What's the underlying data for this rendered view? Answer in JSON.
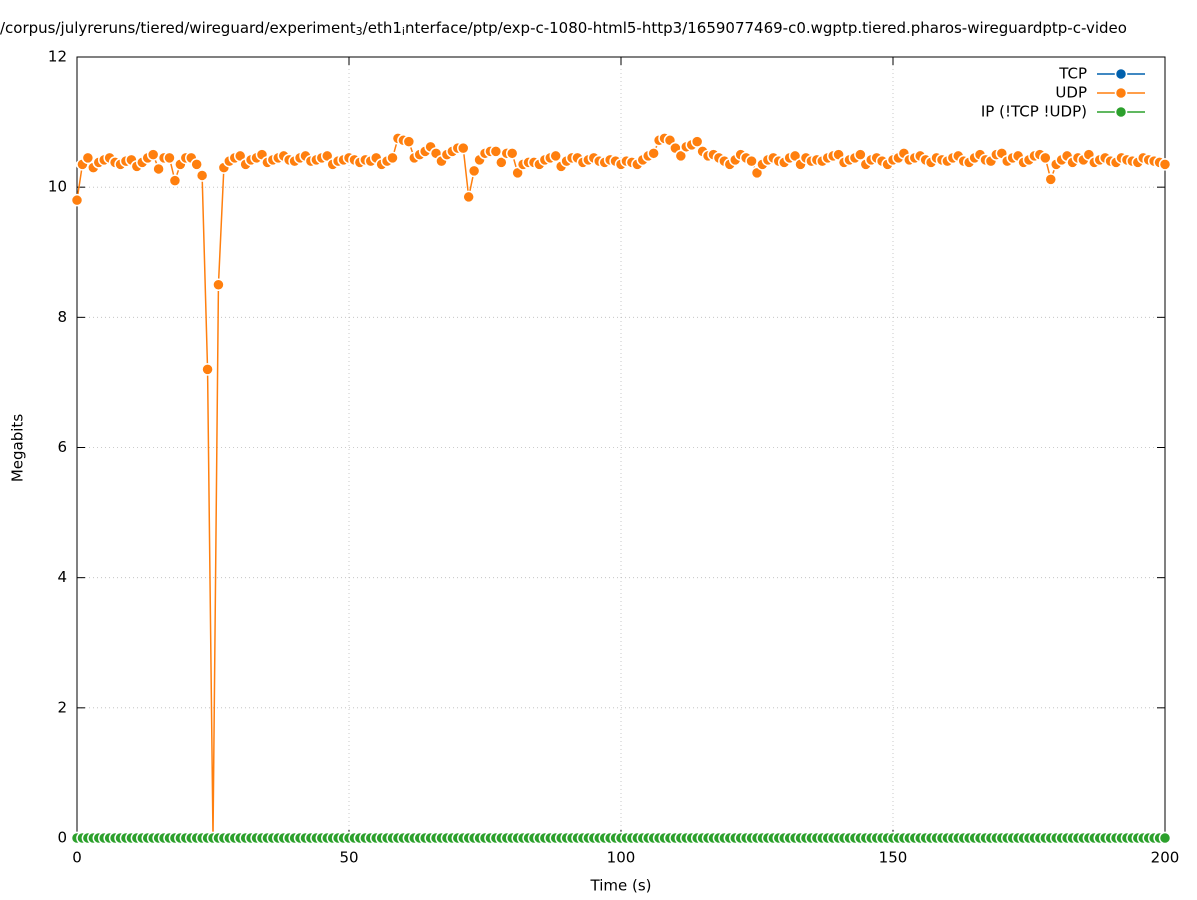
{
  "chart_data": {
    "type": "line",
    "title_parts": [
      "/corpus/julyreruns/tiered/wireguard/experiment",
      "3",
      "/eth1",
      "i",
      "nterface/ptp/exp-c-1080-html5-http3/1659077469-c0.wgptp.tiered.pharos-wireguardptp-c-video"
    ],
    "xlabel": "Time (s)",
    "ylabel": "Megabits",
    "xlim": [
      0,
      200
    ],
    "xticks": [
      0,
      50,
      100,
      150,
      200
    ],
    "ylim": [
      0,
      12
    ],
    "yticks": [
      0,
      2,
      4,
      6,
      8,
      10,
      12
    ],
    "grid": true,
    "legend": "top-right",
    "x": [
      0,
      1,
      2,
      3,
      4,
      5,
      6,
      7,
      8,
      9,
      10,
      11,
      12,
      13,
      14,
      15,
      16,
      17,
      18,
      19,
      20,
      21,
      22,
      23,
      24,
      25,
      26,
      27,
      28,
      29,
      30,
      31,
      32,
      33,
      34,
      35,
      36,
      37,
      38,
      39,
      40,
      41,
      42,
      43,
      44,
      45,
      46,
      47,
      48,
      49,
      50,
      51,
      52,
      53,
      54,
      55,
      56,
      57,
      58,
      59,
      60,
      61,
      62,
      63,
      64,
      65,
      66,
      67,
      68,
      69,
      70,
      71,
      72,
      73,
      74,
      75,
      76,
      77,
      78,
      79,
      80,
      81,
      82,
      83,
      84,
      85,
      86,
      87,
      88,
      89,
      90,
      91,
      92,
      93,
      94,
      95,
      96,
      97,
      98,
      99,
      100,
      101,
      102,
      103,
      104,
      105,
      106,
      107,
      108,
      109,
      110,
      111,
      112,
      113,
      114,
      115,
      116,
      117,
      118,
      119,
      120,
      121,
      122,
      123,
      124,
      125,
      126,
      127,
      128,
      129,
      130,
      131,
      132,
      133,
      134,
      135,
      136,
      137,
      138,
      139,
      140,
      141,
      142,
      143,
      144,
      145,
      146,
      147,
      148,
      149,
      150,
      151,
      152,
      153,
      154,
      155,
      156,
      157,
      158,
      159,
      160,
      161,
      162,
      163,
      164,
      165,
      166,
      167,
      168,
      169,
      170,
      171,
      172,
      173,
      174,
      175,
      176,
      177,
      178,
      179,
      180,
      181,
      182,
      183,
      184,
      185,
      186,
      187,
      188,
      189,
      190,
      191,
      192,
      193,
      194,
      195,
      196,
      197,
      198,
      199,
      200
    ],
    "series": [
      {
        "name": "TCP",
        "color": "#0060ad",
        "values": [
          0,
          0,
          0,
          0,
          0,
          0,
          0,
          0,
          0,
          0,
          0,
          0,
          0,
          0,
          0,
          0,
          0,
          0,
          0,
          0,
          0,
          0,
          0,
          0,
          0,
          0,
          0,
          0,
          0,
          0,
          0,
          0,
          0,
          0,
          0,
          0,
          0,
          0,
          0,
          0,
          0,
          0,
          0,
          0,
          0,
          0,
          0,
          0,
          0,
          0,
          0,
          0,
          0,
          0,
          0,
          0,
          0,
          0,
          0,
          0,
          0,
          0,
          0,
          0,
          0,
          0,
          0,
          0,
          0,
          0,
          0,
          0,
          0,
          0,
          0,
          0,
          0,
          0,
          0,
          0,
          0,
          0,
          0,
          0,
          0,
          0,
          0,
          0,
          0,
          0,
          0,
          0,
          0,
          0,
          0,
          0,
          0,
          0,
          0,
          0,
          0,
          0,
          0,
          0,
          0,
          0,
          0,
          0,
          0,
          0,
          0,
          0,
          0,
          0,
          0,
          0,
          0,
          0,
          0,
          0,
          0,
          0,
          0,
          0,
          0,
          0,
          0,
          0,
          0,
          0,
          0,
          0,
          0,
          0,
          0,
          0,
          0,
          0,
          0,
          0,
          0,
          0,
          0,
          0,
          0,
          0,
          0,
          0,
          0,
          0,
          0,
          0,
          0,
          0,
          0,
          0,
          0,
          0,
          0,
          0,
          0,
          0,
          0,
          0,
          0,
          0,
          0,
          0,
          0,
          0,
          0,
          0,
          0,
          0,
          0,
          0,
          0,
          0,
          0,
          0,
          0,
          0,
          0,
          0,
          0,
          0,
          0,
          0,
          0,
          0,
          0,
          0,
          0,
          0,
          0,
          0,
          0,
          0,
          0,
          0,
          0
        ]
      },
      {
        "name": "UDP",
        "color": "#ff7f0e",
        "values": [
          9.8,
          10.35,
          10.45,
          10.3,
          10.38,
          10.42,
          10.45,
          10.38,
          10.35,
          10.4,
          10.42,
          10.32,
          10.38,
          10.45,
          10.5,
          10.28,
          10.45,
          10.45,
          10.1,
          10.35,
          10.45,
          10.45,
          10.35,
          10.18,
          7.2,
          0,
          8.5,
          10.3,
          10.4,
          10.45,
          10.48,
          10.35,
          10.42,
          10.45,
          10.5,
          10.38,
          10.42,
          10.45,
          10.48,
          10.42,
          10.4,
          10.45,
          10.48,
          10.4,
          10.42,
          10.45,
          10.48,
          10.35,
          10.4,
          10.42,
          10.45,
          10.42,
          10.38,
          10.42,
          10.4,
          10.45,
          10.35,
          10.4,
          10.45,
          10.75,
          10.72,
          10.7,
          10.45,
          10.5,
          10.55,
          10.62,
          10.52,
          10.4,
          10.5,
          10.55,
          10.6,
          10.6,
          9.85,
          10.25,
          10.42,
          10.52,
          10.55,
          10.55,
          10.38,
          10.52,
          10.52,
          10.22,
          10.35,
          10.38,
          10.38,
          10.35,
          10.42,
          10.45,
          10.48,
          10.32,
          10.4,
          10.45,
          10.45,
          10.38,
          10.42,
          10.45,
          10.4,
          10.38,
          10.42,
          10.4,
          10.35,
          10.4,
          10.38,
          10.35,
          10.42,
          10.48,
          10.52,
          10.72,
          10.75,
          10.72,
          10.6,
          10.48,
          10.62,
          10.65,
          10.7,
          10.55,
          10.48,
          10.5,
          10.45,
          10.4,
          10.35,
          10.42,
          10.5,
          10.45,
          10.4,
          10.22,
          10.35,
          10.42,
          10.45,
          10.4,
          10.38,
          10.45,
          10.48,
          10.35,
          10.45,
          10.4,
          10.42,
          10.4,
          10.45,
          10.48,
          10.5,
          10.38,
          10.42,
          10.45,
          10.5,
          10.35,
          10.42,
          10.45,
          10.4,
          10.35,
          10.42,
          10.45,
          10.52,
          10.42,
          10.45,
          10.48,
          10.42,
          10.38,
          10.45,
          10.42,
          10.4,
          10.45,
          10.48,
          10.4,
          10.38,
          10.45,
          10.5,
          10.42,
          10.4,
          10.5,
          10.52,
          10.4,
          10.45,
          10.48,
          10.38,
          10.42,
          10.48,
          10.5,
          10.45,
          10.12,
          10.35,
          10.42,
          10.48,
          10.38,
          10.45,
          10.42,
          10.5,
          10.38,
          10.42,
          10.45,
          10.4,
          10.38,
          10.45,
          10.42,
          10.4,
          10.38,
          10.45,
          10.42,
          10.4,
          10.38,
          10.35
        ]
      },
      {
        "name": "IP (!TCP  !UDP)",
        "color": "#2ca02c",
        "values": [
          0,
          0,
          0,
          0,
          0,
          0,
          0,
          0,
          0,
          0,
          0,
          0,
          0,
          0,
          0,
          0,
          0,
          0,
          0,
          0,
          0,
          0,
          0,
          0,
          0,
          0,
          0,
          0,
          0,
          0,
          0,
          0,
          0,
          0,
          0,
          0,
          0,
          0,
          0,
          0,
          0,
          0,
          0,
          0,
          0,
          0,
          0,
          0,
          0,
          0,
          0,
          0,
          0,
          0,
          0,
          0,
          0,
          0,
          0,
          0,
          0,
          0,
          0,
          0,
          0,
          0,
          0,
          0,
          0,
          0,
          0,
          0,
          0,
          0,
          0,
          0,
          0,
          0,
          0,
          0,
          0,
          0,
          0,
          0,
          0,
          0,
          0,
          0,
          0,
          0,
          0,
          0,
          0,
          0,
          0,
          0,
          0,
          0,
          0,
          0,
          0,
          0,
          0,
          0,
          0,
          0,
          0,
          0,
          0,
          0,
          0,
          0,
          0,
          0,
          0,
          0,
          0,
          0,
          0,
          0,
          0,
          0,
          0,
          0,
          0,
          0,
          0,
          0,
          0,
          0,
          0,
          0,
          0,
          0,
          0,
          0,
          0,
          0,
          0,
          0,
          0,
          0,
          0,
          0,
          0,
          0,
          0,
          0,
          0,
          0,
          0,
          0,
          0,
          0,
          0,
          0,
          0,
          0,
          0,
          0,
          0,
          0,
          0,
          0,
          0,
          0,
          0,
          0,
          0,
          0,
          0,
          0,
          0,
          0,
          0,
          0,
          0,
          0,
          0,
          0,
          0,
          0,
          0,
          0,
          0,
          0,
          0,
          0,
          0,
          0,
          0,
          0,
          0,
          0,
          0,
          0,
          0,
          0,
          0,
          0,
          0
        ]
      }
    ]
  }
}
